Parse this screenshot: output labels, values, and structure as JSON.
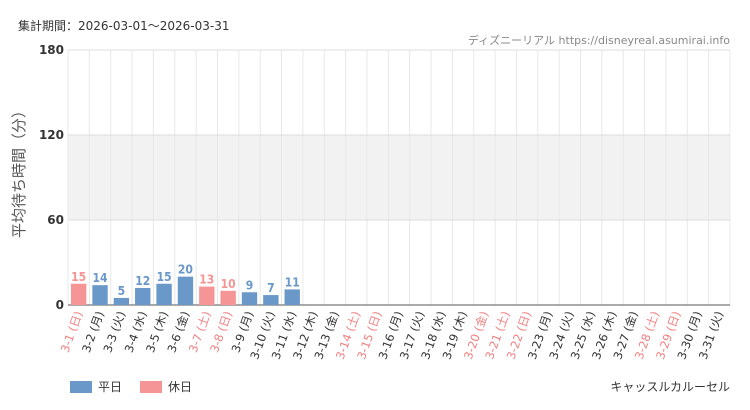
{
  "header": {
    "period": "集計期間：2026-03-01～2026-03-31",
    "source": "ディズニーリアル https://disneyreal.asumirai.info"
  },
  "chart_data": {
    "type": "bar",
    "ylabel": "平均待ち時間（分）",
    "ylim": [
      0,
      180
    ],
    "yticks": [
      0,
      60,
      120,
      180
    ],
    "grid": true,
    "shaded_band": [
      60,
      120
    ],
    "categories": [
      "3-1 (日)",
      "3-2 (月)",
      "3-3 (火)",
      "3-4 (水)",
      "3-5 (木)",
      "3-6 (金)",
      "3-7 (土)",
      "3-8 (日)",
      "3-9 (月)",
      "3-10 (火)",
      "3-11 (水)",
      "3-12 (木)",
      "3-13 (金)",
      "3-14 (土)",
      "3-15 (日)",
      "3-16 (月)",
      "3-17 (火)",
      "3-18 (水)",
      "3-19 (木)",
      "3-20 (金)",
      "3-21 (土)",
      "3-22 (日)",
      "3-23 (月)",
      "3-24 (火)",
      "3-25 (水)",
      "3-26 (木)",
      "3-27 (金)",
      "3-28 (土)",
      "3-29 (日)",
      "3-30 (月)",
      "3-31 (火)"
    ],
    "values": [
      15,
      14,
      5,
      12,
      15,
      20,
      13,
      10,
      9,
      7,
      11,
      null,
      null,
      null,
      null,
      null,
      null,
      null,
      null,
      null,
      null,
      null,
      null,
      null,
      null,
      null,
      null,
      null,
      null,
      null,
      null
    ],
    "holiday": [
      true,
      false,
      false,
      false,
      false,
      false,
      true,
      true,
      false,
      false,
      false,
      false,
      false,
      true,
      true,
      false,
      false,
      false,
      false,
      true,
      true,
      true,
      false,
      false,
      false,
      false,
      false,
      true,
      true,
      false,
      false
    ],
    "legend": [
      {
        "label": "平日",
        "color": "#6a98c8"
      },
      {
        "label": "休日",
        "color": "#f59595"
      }
    ],
    "attraction": "キャッスルカルーセル"
  }
}
